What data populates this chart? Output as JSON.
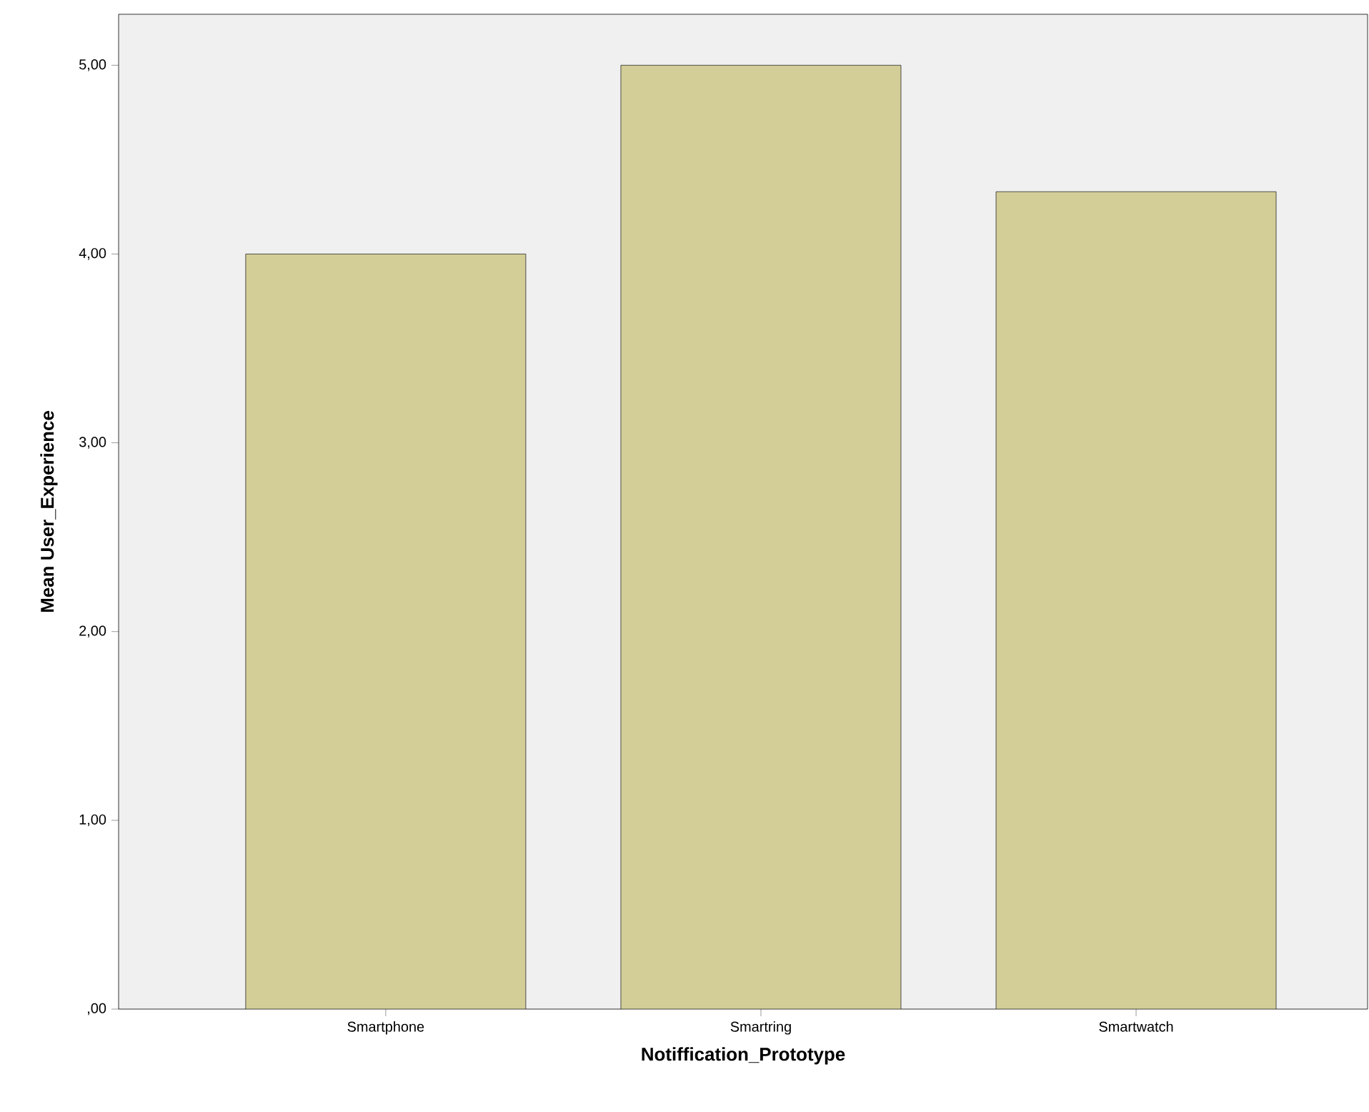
{
  "chart_data": {
    "type": "bar",
    "xlabel": "Notiffication_Prototype",
    "ylabel": "Mean User_Experience",
    "categories": [
      "Smartphone",
      "Smartring",
      "Smartwatch"
    ],
    "values": [
      4.0,
      5.0,
      4.33
    ],
    "color": "#d3ce97",
    "ylim": [
      0,
      5.27
    ],
    "yticks": [
      {
        "value": 0,
        "label": ",00"
      },
      {
        "value": 1,
        "label": "1,00"
      },
      {
        "value": 2,
        "label": "2,00"
      },
      {
        "value": 3,
        "label": "3,00"
      },
      {
        "value": 4,
        "label": "4,00"
      },
      {
        "value": 5,
        "label": "5,00"
      }
    ],
    "grid": false
  }
}
